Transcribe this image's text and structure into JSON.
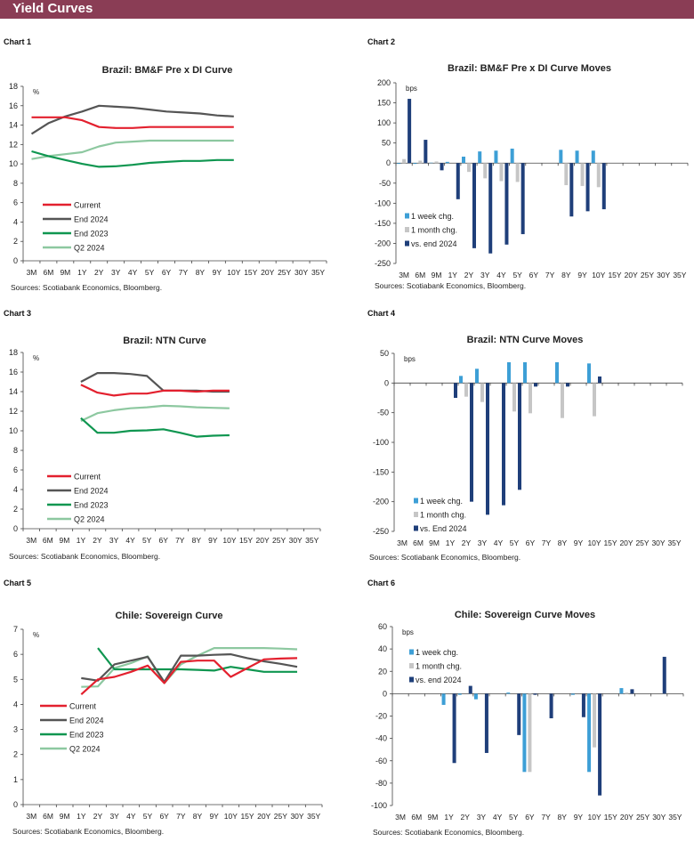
{
  "header": {
    "title": "Yield Curves",
    "color": "#8a3d55"
  },
  "chart_labels": [
    "Chart 1",
    "Chart 2",
    "Chart 3",
    "Chart 4",
    "Chart 5",
    "Chart 6"
  ],
  "colors": {
    "current": "#e3202e",
    "end2024": "#555555",
    "end2023": "#0f9650",
    "q22024": "#8dc8a0",
    "week": "#3d9fd6",
    "month": "#c6c6c6",
    "vs_end": "#1f3f7a"
  },
  "chart_data": [
    {
      "type": "line",
      "title": "Brazil: BM&F Pre x DI Curve",
      "unit": "%",
      "source": "Sources:  Scotiabank  Economics,  Bloomberg.",
      "ylim": [
        0,
        18
      ],
      "yticks": [
        "0",
        "2",
        "4",
        "6",
        "8",
        "10",
        "12",
        "14",
        "16",
        "18"
      ],
      "categories": [
        "3M",
        "6M",
        "9M",
        "1Y",
        "2Y",
        "3Y",
        "4Y",
        "5Y",
        "6Y",
        "7Y",
        "8Y",
        "9Y",
        "10Y",
        "15Y",
        "20Y",
        "25Y",
        "30Y",
        "35Y"
      ],
      "legend": "left",
      "series": [
        {
          "name": "Current",
          "values": [
            14.8,
            14.8,
            14.8,
            14.5,
            13.8,
            13.7,
            13.7,
            13.8,
            13.8,
            13.8,
            13.8,
            13.8,
            13.8,
            null,
            null,
            null,
            null,
            null
          ]
        },
        {
          "name": "End 2024",
          "values": [
            13.1,
            14.2,
            14.9,
            15.4,
            16.0,
            15.9,
            15.8,
            15.6,
            15.4,
            15.3,
            15.2,
            15.0,
            14.9,
            null,
            null,
            null,
            null,
            null
          ]
        },
        {
          "name": "End 2023",
          "values": [
            11.3,
            10.8,
            10.4,
            10.0,
            9.7,
            9.75,
            9.9,
            10.1,
            10.2,
            10.3,
            10.3,
            10.4,
            10.4,
            null,
            null,
            null,
            null,
            null
          ]
        },
        {
          "name": "Q2 2024",
          "values": [
            10.5,
            10.8,
            11.0,
            11.2,
            11.8,
            12.2,
            12.3,
            12.4,
            12.4,
            12.4,
            12.4,
            12.4,
            12.4,
            null,
            null,
            null,
            null,
            null
          ]
        }
      ]
    },
    {
      "type": "bar",
      "title": "Brazil: BM&F Pre x DI Curve Moves",
      "unit": "bps",
      "source": "Sources:  Scotiabank  Economics,  Bloomberg.",
      "ylim": [
        -250,
        200
      ],
      "yticks": [
        "-250",
        "-200",
        "-150",
        "-100",
        "-50",
        "0",
        "50",
        "100",
        "150",
        "200"
      ],
      "categories": [
        "3M",
        "6M",
        "9M",
        "1Y",
        "2Y",
        "3Y",
        "4Y",
        "5Y",
        "6Y",
        "7Y",
        "8Y",
        "9Y",
        "10Y",
        "15Y",
        "20Y",
        "25Y",
        "30Y",
        "35Y"
      ],
      "legend": "bottom-left",
      "series": [
        {
          "name": "1 week chg.",
          "values": [
            -2,
            -2,
            1,
            3,
            16,
            29,
            31,
            36,
            null,
            null,
            33,
            31,
            31,
            null,
            null,
            null,
            null,
            null
          ]
        },
        {
          "name": "1 month chg.",
          "values": [
            10,
            6,
            4,
            0,
            -22,
            -38,
            -45,
            -47,
            null,
            null,
            -55,
            -57,
            -60,
            null,
            null,
            null,
            null,
            null
          ]
        },
        {
          "name": "vs. end 2024",
          "values": [
            160,
            58,
            -18,
            -90,
            -212,
            -225,
            -203,
            -177,
            null,
            null,
            -133,
            -120,
            -115,
            null,
            null,
            null,
            null,
            null
          ]
        }
      ]
    },
    {
      "type": "line",
      "title": "Brazil: NTN Curve",
      "unit": "%",
      "source": "Sources:  Scotiabank  Economics,  Bloomberg.",
      "ylim": [
        0,
        18
      ],
      "yticks": [
        "0",
        "2",
        "4",
        "6",
        "8",
        "10",
        "12",
        "14",
        "16",
        "18"
      ],
      "categories": [
        "3M",
        "6M",
        "9M",
        "1Y",
        "2Y",
        "3Y",
        "4Y",
        "5Y",
        "6Y",
        "7Y",
        "8Y",
        "9Y",
        "10Y",
        "15Y",
        "20Y",
        "25Y",
        "30Y",
        "35Y"
      ],
      "legend": "left",
      "series": [
        {
          "name": "Current",
          "values": [
            null,
            null,
            null,
            14.7,
            13.9,
            13.6,
            13.8,
            13.8,
            14.1,
            14.1,
            14.0,
            14.1,
            14.1,
            null,
            null,
            null,
            null,
            null
          ]
        },
        {
          "name": "End 2024",
          "values": [
            null,
            null,
            null,
            15.0,
            15.9,
            15.9,
            15.8,
            15.6,
            14.1,
            14.1,
            14.1,
            14.0,
            14.0,
            null,
            null,
            null,
            null,
            null
          ]
        },
        {
          "name": "End 2023",
          "values": [
            null,
            null,
            null,
            11.3,
            9.8,
            9.8,
            10.0,
            10.05,
            10.15,
            9.8,
            9.4,
            9.5,
            9.55,
            null,
            null,
            null,
            null,
            null
          ]
        },
        {
          "name": "Q2 2024",
          "values": [
            null,
            null,
            null,
            11.0,
            11.8,
            12.1,
            12.3,
            12.4,
            12.55,
            12.5,
            12.4,
            12.35,
            12.3,
            null,
            null,
            null,
            null,
            null
          ]
        }
      ]
    },
    {
      "type": "bar",
      "title": "Brazil: NTN Curve Moves",
      "unit": "bps",
      "source": "Sources:  Scotiabank  Economics,  Bloomberg.",
      "ylim": [
        -250,
        50
      ],
      "yticks": [
        "-250",
        "-200",
        "-150",
        "-100",
        "-50",
        "0",
        "50"
      ],
      "categories": [
        "3M",
        "6M",
        "9M",
        "1Y",
        "2Y",
        "3Y",
        "4Y",
        "5Y",
        "6Y",
        "7Y",
        "8Y",
        "9Y",
        "10Y",
        "15Y",
        "20Y",
        "25Y",
        "30Y",
        "35Y"
      ],
      "legend": "bottom-left",
      "series": [
        {
          "name": "1 week chg.",
          "values": [
            null,
            null,
            null,
            null,
            12,
            24,
            null,
            35,
            35,
            null,
            35,
            null,
            33,
            null,
            null,
            null,
            null,
            null
          ]
        },
        {
          "name": "1 month chg.",
          "values": [
            null,
            null,
            null,
            null,
            -23,
            -32,
            null,
            -48,
            -51,
            null,
            -59,
            null,
            -56,
            null,
            null,
            null,
            null,
            null
          ]
        },
        {
          "name": "vs. End 2024",
          "values": [
            null,
            null,
            null,
            -25,
            -200,
            -222,
            -206,
            -180,
            -6,
            null,
            -6,
            null,
            11,
            null,
            null,
            null,
            null,
            null
          ]
        }
      ]
    },
    {
      "type": "line",
      "title": "Chile: Sovereign Curve",
      "unit": "%",
      "source": "Sources:  Scotiabank  Economics,  Bloomberg.",
      "ylim": [
        0,
        7
      ],
      "yticks": [
        "0",
        "1",
        "2",
        "3",
        "4",
        "5",
        "6",
        "7"
      ],
      "categories": [
        "3M",
        "6M",
        "9M",
        "1Y",
        "2Y",
        "3Y",
        "4Y",
        "5Y",
        "6Y",
        "7Y",
        "8Y",
        "9Y",
        "10Y",
        "15Y",
        "20Y",
        "25Y",
        "30Y",
        "35Y"
      ],
      "legend": "left",
      "series": [
        {
          "name": "Current",
          "values": [
            null,
            null,
            null,
            4.4,
            5.0,
            5.1,
            5.3,
            5.55,
            4.85,
            5.7,
            5.75,
            5.75,
            5.1,
            5.45,
            5.8,
            5.83,
            5.85,
            null
          ]
        },
        {
          "name": "End 2024",
          "values": [
            null,
            null,
            null,
            5.05,
            4.95,
            5.6,
            5.75,
            5.9,
            4.9,
            5.95,
            5.95,
            5.98,
            6.0,
            5.85,
            5.72,
            5.62,
            5.5,
            null
          ]
        },
        {
          "name": "End 2023",
          "values": [
            null,
            null,
            null,
            null,
            6.25,
            5.4,
            5.4,
            5.4,
            5.4,
            5.4,
            5.38,
            5.35,
            5.5,
            5.4,
            5.3,
            5.3,
            5.3,
            null
          ]
        },
        {
          "name": "Q2 2024",
          "values": [
            null,
            null,
            null,
            4.7,
            4.72,
            5.45,
            5.65,
            5.92,
            4.85,
            5.6,
            5.95,
            6.25,
            6.25,
            6.25,
            6.25,
            6.23,
            6.2,
            null
          ]
        }
      ]
    },
    {
      "type": "bar",
      "title": "Chile: Sovereign Curve Moves",
      "unit": "bps",
      "source": "Sources:  Scotiabank  Economics,  Bloomberg.",
      "ylim": [
        -100,
        60
      ],
      "yticks": [
        "-100",
        "-80",
        "-60",
        "-40",
        "-20",
        "0",
        "20",
        "40",
        "60"
      ],
      "categories": [
        "3M",
        "6M",
        "9M",
        "1Y",
        "2Y",
        "3Y",
        "4Y",
        "5Y",
        "6Y",
        "7Y",
        "8Y",
        "9Y",
        "10Y",
        "15Y",
        "20Y",
        "25Y",
        "30Y",
        "35Y"
      ],
      "legend": "top-left",
      "series": [
        {
          "name": "1 week chg.",
          "values": [
            null,
            null,
            null,
            -10,
            -1,
            -5,
            null,
            1,
            -70,
            null,
            null,
            -1,
            -70,
            null,
            5,
            null,
            null,
            null
          ]
        },
        {
          "name": "1 month chg.",
          "values": [
            null,
            null,
            null,
            0,
            0,
            0,
            null,
            0,
            -70,
            null,
            null,
            0,
            -48,
            null,
            1,
            null,
            null,
            null
          ]
        },
        {
          "name": "vs. end 2024",
          "values": [
            null,
            null,
            null,
            -62,
            7,
            -53,
            null,
            -37,
            -1,
            -22,
            null,
            -21,
            -91,
            null,
            4,
            null,
            33,
            null
          ]
        }
      ]
    }
  ]
}
